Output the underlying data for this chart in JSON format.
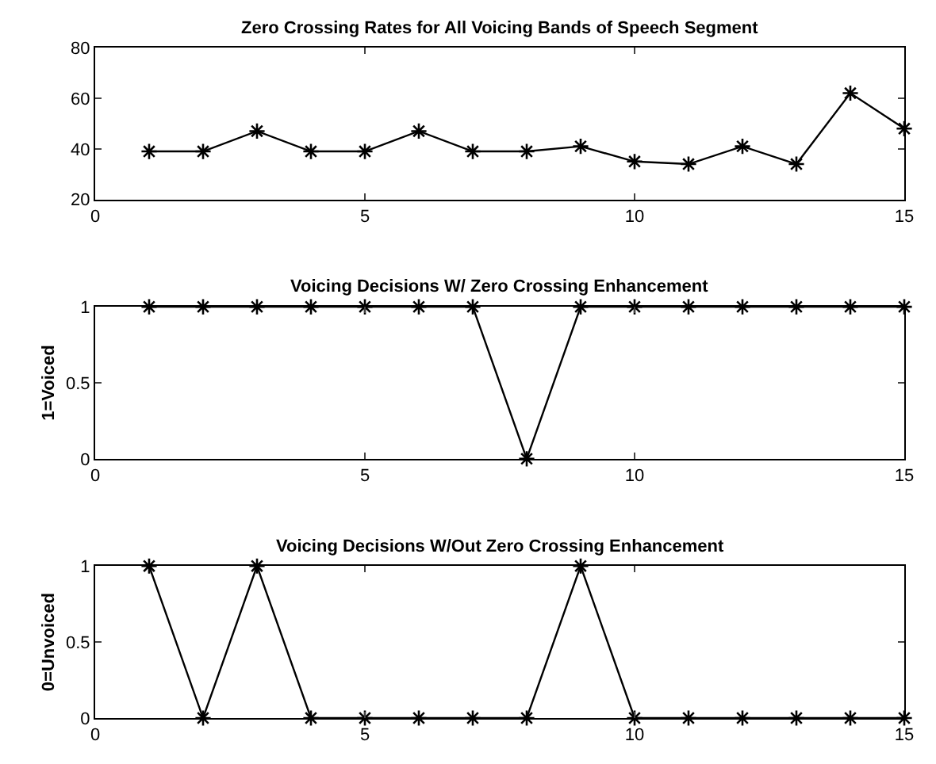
{
  "chart_data": [
    {
      "type": "line",
      "title": "Zero Crossing Rates for All Voicing Bands of Speech Segment",
      "x": [
        1,
        2,
        3,
        4,
        5,
        6,
        7,
        8,
        9,
        10,
        11,
        12,
        13,
        14,
        15
      ],
      "series": [
        {
          "color": "#000000",
          "values": [
            39,
            39,
            47,
            39,
            39,
            47,
            39,
            39,
            41,
            35,
            34,
            41,
            34,
            62,
            48
          ]
        }
      ],
      "xlim": [
        0,
        15
      ],
      "xticks": [
        0,
        5,
        10,
        15
      ],
      "ylim": [
        20,
        80
      ],
      "yticks": [
        20,
        40,
        60,
        80
      ],
      "marker": "cross",
      "line_style": "solid"
    },
    {
      "type": "line",
      "title": "Voicing Decisions W/ Zero Crossing Enhancement",
      "ylabel": "1=Voiced",
      "x": [
        1,
        2,
        3,
        4,
        5,
        6,
        7,
        8,
        9,
        10,
        11,
        12,
        13,
        14,
        15
      ],
      "series": [
        {
          "color": "#000000",
          "values": [
            1,
            1,
            1,
            1,
            1,
            1,
            1,
            0,
            1,
            1,
            1,
            1,
            1,
            1,
            1
          ]
        }
      ],
      "xlim": [
        0,
        15
      ],
      "xticks": [
        0,
        5,
        10,
        15
      ],
      "ylim": [
        0,
        1
      ],
      "yticks": [
        0,
        0.5,
        1
      ],
      "marker": "cross",
      "line_style": "solid"
    },
    {
      "type": "line",
      "title": "Voicing Decisions W/Out Zero Crossing Enhancement",
      "ylabel": "0=Unvoiced",
      "x": [
        1,
        2,
        3,
        4,
        5,
        6,
        7,
        8,
        9,
        10,
        11,
        12,
        13,
        14,
        15
      ],
      "series": [
        {
          "color": "#000000",
          "values": [
            1,
            0,
            1,
            0,
            0,
            0,
            0,
            0,
            1,
            0,
            0,
            0,
            0,
            0,
            0
          ]
        }
      ],
      "xlim": [
        0,
        15
      ],
      "xticks": [
        0,
        5,
        10,
        15
      ],
      "ylim": [
        0,
        1
      ],
      "yticks": [
        0,
        0.5,
        1
      ],
      "marker": "cross",
      "line_style": "solid"
    }
  ]
}
